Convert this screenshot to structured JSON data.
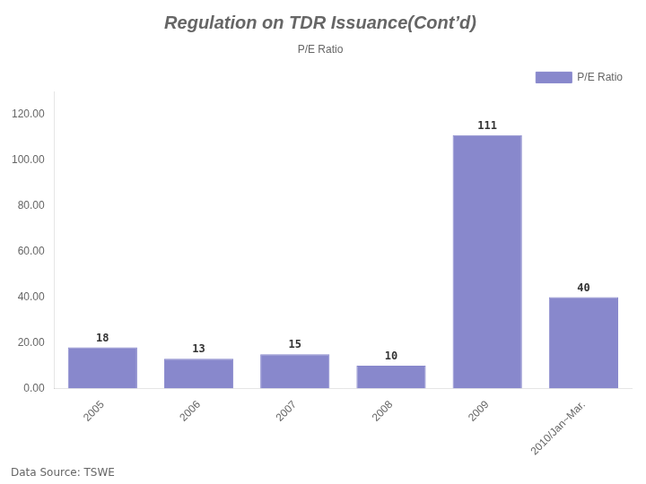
{
  "chart_data": {
    "type": "bar",
    "title": "Regulation on TDR Issuance(Cont’d)",
    "subtitle": "P/E Ratio",
    "categories": [
      "2005",
      "2006",
      "2007",
      "2008",
      "2009",
      "2010/Jan~Mar."
    ],
    "series": [
      {
        "name": "P/E Ratio",
        "color": "#8888cc",
        "values": [
          18,
          13,
          15,
          10,
          111,
          40
        ]
      }
    ],
    "ylim": [
      0,
      130
    ],
    "yticks": [
      {
        "value": 0,
        "label": "0.00"
      },
      {
        "value": 20,
        "label": "20.00"
      },
      {
        "value": 40,
        "label": "40.00"
      },
      {
        "value": 60,
        "label": "60.00"
      },
      {
        "value": 80,
        "label": "80.00"
      },
      {
        "value": 100,
        "label": "100.00"
      },
      {
        "value": 120,
        "label": "120.00"
      }
    ],
    "grid": false,
    "legend": "upper right",
    "data_labels": true,
    "annotations": [
      "Data Source: TSWE"
    ]
  }
}
